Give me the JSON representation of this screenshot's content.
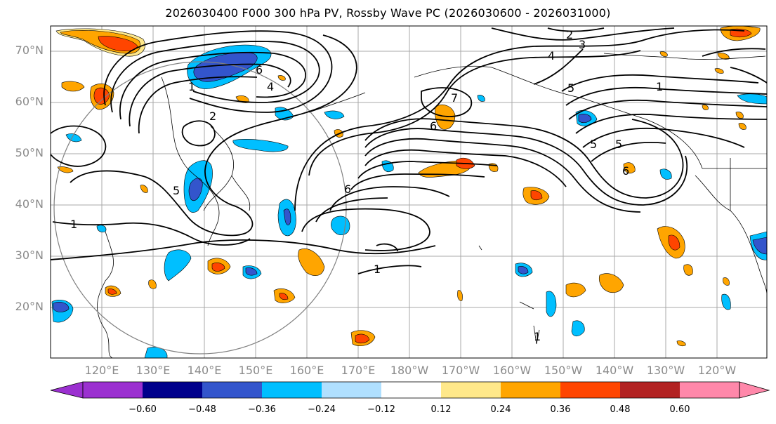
{
  "title": "2026030400 F000 300 hPa PV, Rossby Wave PC (2026030600 - 2026031000)",
  "lat_labels": [
    "70°N",
    "60°N",
    "50°N",
    "40°N",
    "30°N",
    "20°N"
  ],
  "lon_labels": [
    "120°E",
    "130°E",
    "140°E",
    "150°E",
    "160°E",
    "170°E",
    "180°W",
    "170°W",
    "160°W",
    "150°W",
    "140°W",
    "130°W",
    "120°W"
  ],
  "contour_labels": [
    "1",
    "2",
    "3",
    "4",
    "5",
    "6",
    "7"
  ],
  "colorbar": {
    "ticks": [
      "−0.60",
      "−0.48",
      "−0.36",
      "−0.24",
      "−0.12",
      "0.12",
      "0.24",
      "0.36",
      "0.48",
      "0.60"
    ],
    "colors": [
      "#9b30d0",
      "#00008b",
      "#3355cc",
      "#00bfff",
      "#b0e0ff",
      "#ffffff",
      "#ffe88a",
      "#ffa500",
      "#ff4500",
      "#b22222",
      "#ff88aa"
    ]
  }
}
